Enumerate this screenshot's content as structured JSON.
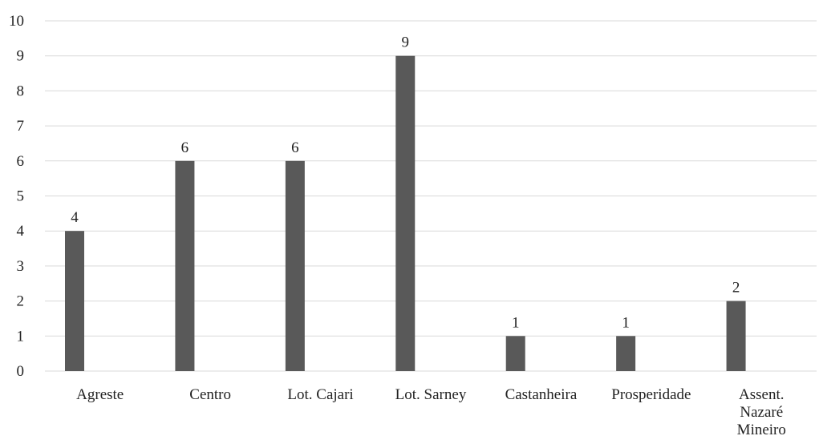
{
  "chart_data": {
    "type": "bar",
    "categories": [
      [
        "Agreste"
      ],
      [
        "Centro"
      ],
      [
        "Lot. Cajari"
      ],
      [
        "Lot. Sarney"
      ],
      [
        "Castanheira"
      ],
      [
        "Prosperidade"
      ],
      [
        "Assent.",
        "Nazaré",
        "Mineiro"
      ]
    ],
    "values": [
      4,
      6,
      6,
      9,
      1,
      1,
      2
    ],
    "title": "",
    "xlabel": "",
    "ylabel": "",
    "ylim": [
      0,
      10
    ],
    "yticks": [
      0,
      1,
      2,
      3,
      4,
      5,
      6,
      7,
      8,
      9,
      10
    ],
    "grid": true,
    "legend": "none",
    "colors": {
      "bar": "#595959",
      "grid": "#d9d9d9",
      "text": "#222222"
    }
  }
}
